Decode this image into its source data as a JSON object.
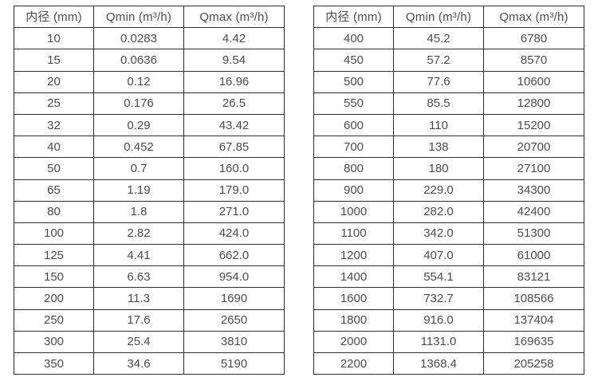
{
  "page": {
    "background": "#ffffff",
    "text_color": "#4d4d4d",
    "border_color": "#2e2e2e"
  },
  "tables": [
    {
      "name": "small-diameter-flow-table",
      "headers": [
        "内径 (mm)",
        "Qmin (m³/h)",
        "Qmax (m³/h)"
      ],
      "rows": [
        [
          "10",
          "0.0283",
          "4.42"
        ],
        [
          "15",
          "0.0636",
          "9.54"
        ],
        [
          "20",
          "0.12",
          "16.96"
        ],
        [
          "25",
          "0.176",
          "26.5"
        ],
        [
          "32",
          "0.29",
          "43.42"
        ],
        [
          "40",
          "0.452",
          "67.85"
        ],
        [
          "50",
          "0.7",
          "160.0"
        ],
        [
          "65",
          "1.19",
          "179.0"
        ],
        [
          "80",
          "1.8",
          "271.0"
        ],
        [
          "100",
          "2.82",
          "424.0"
        ],
        [
          "125",
          "4.41",
          "662.0"
        ],
        [
          "150",
          "6.63",
          "954.0"
        ],
        [
          "200",
          "11.3",
          "1690"
        ],
        [
          "250",
          "17.6",
          "2650"
        ],
        [
          "300",
          "25.4",
          "3810"
        ],
        [
          "350",
          "34.6",
          "5190"
        ]
      ]
    },
    {
      "name": "large-diameter-flow-table",
      "headers": [
        "内径 (mm)",
        "Qmin (m³/h)",
        "Qmax (m³/h)"
      ],
      "rows": [
        [
          "400",
          "45.2",
          "6780"
        ],
        [
          "450",
          "57.2",
          "8570"
        ],
        [
          "500",
          "77.6",
          "10600"
        ],
        [
          "550",
          "85.5",
          "12800"
        ],
        [
          "600",
          "110",
          "15200"
        ],
        [
          "700",
          "138",
          "20700"
        ],
        [
          "800",
          "180",
          "27100"
        ],
        [
          "900",
          "229.0",
          "34300"
        ],
        [
          "1000",
          "282.0",
          "42400"
        ],
        [
          "1100",
          "342.0",
          "51300"
        ],
        [
          "1200",
          "407.0",
          "61000"
        ],
        [
          "1400",
          "554.1",
          "83121"
        ],
        [
          "1600",
          "732.7",
          "108566"
        ],
        [
          "1800",
          "916.0",
          "137404"
        ],
        [
          "2000",
          "1131.0",
          "169635"
        ],
        [
          "2200",
          "1368.4",
          "205258"
        ]
      ]
    }
  ]
}
